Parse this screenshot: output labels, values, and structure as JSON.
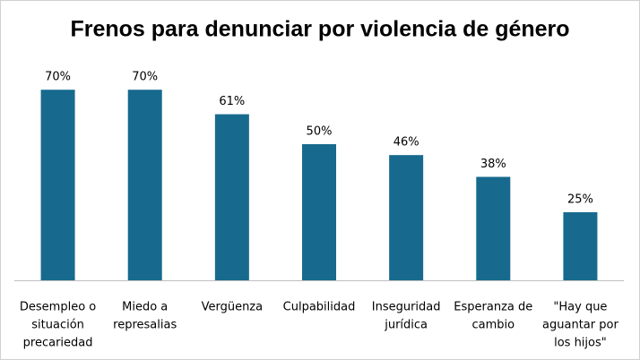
{
  "chart_data": {
    "type": "bar",
    "title": "Frenos para denunciar por violencia de género",
    "categories": [
      [
        "Desempleo o",
        "situación",
        "precariedad"
      ],
      [
        "Miedo a",
        "represalias"
      ],
      [
        "Vergüenza"
      ],
      [
        "Culpabilidad"
      ],
      [
        "Inseguridad",
        "jurídica"
      ],
      [
        "Esperanza de",
        "cambio"
      ],
      [
        "\"Hay que",
        "aguantar por",
        "los hijos\""
      ]
    ],
    "values": [
      70,
      70,
      61,
      50,
      46,
      38,
      25
    ],
    "value_labels": [
      "70%",
      "70%",
      "61%",
      "50%",
      "46%",
      "38%",
      "25%"
    ],
    "color": "#176a8e"
  }
}
